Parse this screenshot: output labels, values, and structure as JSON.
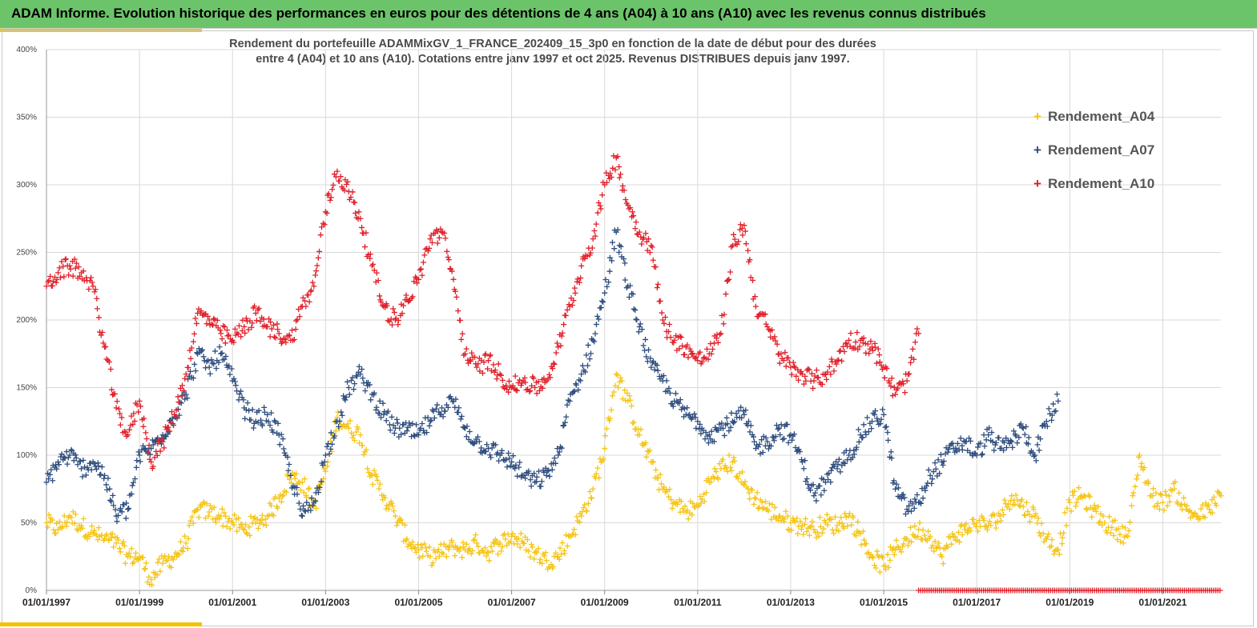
{
  "header": {
    "title": "ADAM Informe. Evolution historique des performances en euros pour des détentions de 4 ans (A04) à 10 ans (A10) avec les revenus connus distribués"
  },
  "colors": {
    "header_bg": "#6cc46a",
    "accent": "#f2c200",
    "A04": "#f5c518",
    "A07": "#2e4d7e",
    "A10": "#e0202a"
  },
  "chart_data": {
    "type": "scatter",
    "title_line1": "Rendement du portefeuille ADAMMixGV_1_FRANCE_202409_15_3p0  en fonction de la date de début pour des durées",
    "title_line2": "entre 4 (A04) et 10 ans (A10). Cotations  entre janv 1997 et oct 2025. Revenus DISTRIBUES depuis janv 1997.",
    "xlabel": "",
    "ylabel": "",
    "x_unit": "year",
    "xlim": [
      1997.0,
      2022.25
    ],
    "ylim": [
      0,
      400
    ],
    "yticks": [
      0,
      50,
      100,
      150,
      200,
      250,
      300,
      350,
      400
    ],
    "ytick_labels": [
      "0%",
      "50%",
      "100%",
      "150%",
      "200%",
      "250%",
      "300%",
      "350%",
      "400%"
    ],
    "xticks": [
      1997,
      1999,
      2001,
      2003,
      2005,
      2007,
      2009,
      2011,
      2013,
      2015,
      2017,
      2019,
      2021
    ],
    "xtick_labels": [
      "01/01/1997",
      "01/01/1999",
      "01/01/2001",
      "01/01/2003",
      "01/01/2005",
      "01/01/2007",
      "01/01/2009",
      "01/01/2011",
      "01/01/2013",
      "01/01/2015",
      "01/01/2017",
      "01/01/2019",
      "01/01/2021"
    ],
    "grid": true,
    "legend_position": "top-right",
    "marker": "+",
    "series": [
      {
        "name": "Rendement_A04",
        "color": "#f5c518",
        "x": [
          1997.0,
          1997.25,
          1997.5,
          1997.75,
          1998.0,
          1998.25,
          1998.5,
          1998.75,
          1999.0,
          1999.25,
          1999.5,
          1999.75,
          2000.0,
          2000.25,
          2000.5,
          2000.75,
          2001.0,
          2001.25,
          2001.5,
          2001.75,
          2002.0,
          2002.25,
          2002.5,
          2002.75,
          2003.0,
          2003.25,
          2003.5,
          2003.75,
          2004.0,
          2004.25,
          2004.5,
          2004.75,
          2005.0,
          2005.25,
          2005.5,
          2005.75,
          2006.0,
          2006.25,
          2006.5,
          2006.75,
          2007.0,
          2007.25,
          2007.5,
          2007.75,
          2008.0,
          2008.25,
          2008.5,
          2008.75,
          2009.0,
          2009.25,
          2009.5,
          2009.75,
          2010.0,
          2010.25,
          2010.5,
          2010.75,
          2011.0,
          2011.25,
          2011.5,
          2011.75,
          2012.0,
          2012.25,
          2012.5,
          2012.75,
          2013.0,
          2013.25,
          2013.5,
          2013.75,
          2014.0,
          2014.25,
          2014.5,
          2014.75,
          2015.0,
          2015.25,
          2015.5,
          2015.75,
          2016.0,
          2016.25,
          2016.5,
          2016.75,
          2017.0,
          2017.25,
          2017.5,
          2017.75,
          2018.0,
          2018.25,
          2018.5,
          2018.75,
          2019.0,
          2019.25,
          2019.5,
          2019.75,
          2020.0,
          2020.25,
          2020.5,
          2020.75,
          2021.0,
          2021.25,
          2021.5,
          2021.75,
          2022.0,
          2022.25
        ],
        "y": [
          50,
          45,
          55,
          48,
          42,
          38,
          35,
          25,
          25,
          8,
          20,
          25,
          35,
          60,
          58,
          55,
          50,
          45,
          50,
          55,
          68,
          85,
          80,
          62,
          88,
          128,
          120,
          115,
          85,
          70,
          55,
          38,
          30,
          25,
          28,
          32,
          30,
          35,
          28,
          35,
          40,
          35,
          28,
          22,
          25,
          40,
          55,
          75,
          105,
          160,
          140,
          115,
          95,
          75,
          65,
          58,
          62,
          80,
          90,
          95,
          78,
          68,
          60,
          55,
          50,
          48,
          45,
          50,
          48,
          55,
          42,
          25,
          18,
          30,
          38,
          45,
          40,
          25,
          40,
          45,
          50,
          48,
          55,
          70,
          62,
          55,
          38,
          30,
          65,
          70,
          60,
          50,
          45,
          40,
          100,
          70,
          65,
          75,
          60,
          55,
          60,
          70
        ]
      },
      {
        "name": "Rendement_A07",
        "color": "#2e4d7e",
        "x": [
          1997.0,
          1997.25,
          1997.5,
          1997.75,
          1998.0,
          1998.25,
          1998.5,
          1998.75,
          1999.0,
          1999.25,
          1999.5,
          1999.75,
          2000.0,
          2000.25,
          2000.5,
          2000.75,
          2001.0,
          2001.25,
          2001.5,
          2001.75,
          2002.0,
          2002.25,
          2002.5,
          2002.75,
          2003.0,
          2003.25,
          2003.5,
          2003.75,
          2004.0,
          2004.25,
          2004.5,
          2004.75,
          2005.0,
          2005.25,
          2005.5,
          2005.75,
          2006.0,
          2006.25,
          2006.5,
          2006.75,
          2007.0,
          2007.25,
          2007.5,
          2007.75,
          2008.0,
          2008.25,
          2008.5,
          2008.75,
          2009.0,
          2009.25,
          2009.5,
          2009.75,
          2010.0,
          2010.25,
          2010.5,
          2010.75,
          2011.0,
          2011.25,
          2011.5,
          2011.75,
          2012.0,
          2012.25,
          2012.5,
          2012.75,
          2013.0,
          2013.25,
          2013.5,
          2013.75,
          2014.0,
          2014.25,
          2014.5,
          2014.75,
          2015.0,
          2015.25,
          2015.5,
          2015.75,
          2016.0,
          2016.25,
          2016.5,
          2016.75,
          2017.0,
          2017.25,
          2017.5,
          2017.75,
          2018.0,
          2018.25,
          2018.5,
          2018.75
        ],
        "y": [
          80,
          95,
          100,
          90,
          95,
          85,
          55,
          60,
          100,
          105,
          115,
          130,
          145,
          175,
          165,
          175,
          155,
          135,
          125,
          130,
          115,
          85,
          55,
          65,
          100,
          125,
          150,
          160,
          145,
          130,
          120,
          118,
          115,
          125,
          135,
          140,
          120,
          110,
          105,
          100,
          95,
          85,
          80,
          85,
          100,
          140,
          160,
          185,
          220,
          265,
          225,
          195,
          165,
          155,
          140,
          130,
          125,
          115,
          120,
          125,
          130,
          105,
          110,
          120,
          115,
          95,
          70,
          80,
          90,
          100,
          115,
          125,
          130,
          75,
          60,
          65,
          85,
          95,
          105,
          110,
          100,
          115,
          105,
          110,
          120,
          100,
          125,
          140
        ]
      },
      {
        "name": "Rendement_A10",
        "color": "#e0202a",
        "x": [
          1997.0,
          1997.25,
          1997.5,
          1997.75,
          1998.0,
          1998.25,
          1998.5,
          1998.75,
          1999.0,
          1999.25,
          1999.5,
          1999.75,
          2000.0,
          2000.25,
          2000.5,
          2000.75,
          2001.0,
          2001.25,
          2001.5,
          2001.75,
          2002.0,
          2002.25,
          2002.5,
          2002.75,
          2003.0,
          2003.25,
          2003.5,
          2003.75,
          2004.0,
          2004.25,
          2004.5,
          2004.75,
          2005.0,
          2005.25,
          2005.5,
          2005.75,
          2006.0,
          2006.25,
          2006.5,
          2006.75,
          2007.0,
          2007.25,
          2007.5,
          2007.75,
          2008.0,
          2008.25,
          2008.5,
          2008.75,
          2009.0,
          2009.25,
          2009.5,
          2009.75,
          2010.0,
          2010.25,
          2010.5,
          2010.75,
          2011.0,
          2011.25,
          2011.5,
          2011.75,
          2012.0,
          2012.25,
          2012.5,
          2012.75,
          2013.0,
          2013.25,
          2013.5,
          2013.75,
          2014.0,
          2014.25,
          2014.5,
          2014.75,
          2015.0,
          2015.25,
          2015.5,
          2015.75
        ],
        "y": [
          225,
          235,
          240,
          235,
          225,
          180,
          135,
          115,
          140,
          95,
          110,
          130,
          160,
          205,
          200,
          190,
          185,
          195,
          205,
          195,
          190,
          185,
          210,
          225,
          280,
          310,
          295,
          275,
          240,
          210,
          200,
          215,
          230,
          260,
          265,
          230,
          175,
          165,
          170,
          160,
          150,
          155,
          150,
          155,
          180,
          210,
          240,
          260,
          300,
          320,
          285,
          265,
          255,
          200,
          185,
          180,
          170,
          175,
          190,
          255,
          270,
          210,
          195,
          175,
          165,
          160,
          155,
          160,
          170,
          185,
          185,
          180,
          165,
          145,
          155,
          190
        ]
      }
    ],
    "marker_strip": {
      "color": "#e0202a",
      "xlim": [
        2015.75,
        2022.25
      ],
      "y": 0
    }
  }
}
